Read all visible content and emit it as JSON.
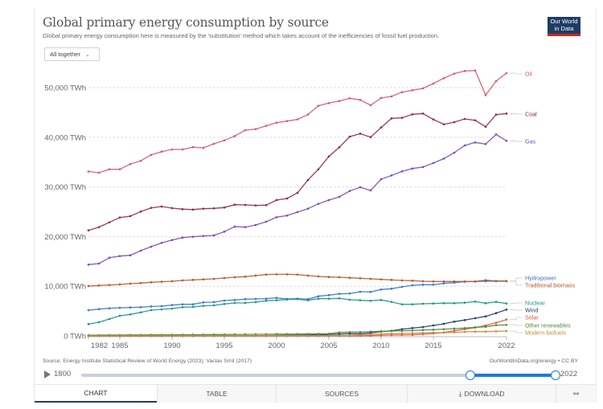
{
  "header": {
    "title": "Global primary energy consumption by source",
    "subtitle": "Global primary energy consumption here is measured by the 'substitution' method which takes account of the inefficiencies of fossil fuel production.",
    "logo_line1": "Our World",
    "logo_line2": "in Data"
  },
  "controls": {
    "dropdown_label": "All together",
    "dropdown_icon": "chevron-down-icon"
  },
  "footer": {
    "source": "Source: Energy Institute Statistical Review of World Energy (2023); Vaclav Smil (2017)",
    "license": "OurWorldInData.org/energy • CC BY"
  },
  "timeline": {
    "play_icon": "play-icon",
    "min_label": "1800",
    "max_label": "2022",
    "range_min": 1800,
    "range_max": 2022,
    "selected_start": 1982,
    "selected_end": 2022
  },
  "tabs": [
    {
      "label": "CHART",
      "active": true
    },
    {
      "label": "TABLE",
      "active": false
    },
    {
      "label": "SOURCES",
      "active": false
    },
    {
      "label": "DOWNLOAD",
      "active": false,
      "icon": "download-icon"
    },
    {
      "label": "",
      "active": false,
      "icon": "share-icon"
    }
  ],
  "chart_data": {
    "type": "line",
    "title": "Global primary energy consumption by source",
    "xlabel": "",
    "ylabel": "",
    "xlim": [
      1982,
      2022
    ],
    "ylim": [
      0,
      55000
    ],
    "x_ticks": [
      1982,
      1985,
      1990,
      1995,
      2000,
      2005,
      2010,
      2015,
      2022
    ],
    "y_ticks": [
      {
        "value": 0,
        "label": "0 TWh"
      },
      {
        "value": 10000,
        "label": "10,000 TWh"
      },
      {
        "value": 20000,
        "label": "20,000 TWh"
      },
      {
        "value": 30000,
        "label": "30,000 TWh"
      },
      {
        "value": 40000,
        "label": "40,000 TWh"
      },
      {
        "value": 50000,
        "label": "50,000 TWh"
      }
    ],
    "grid": "horizontal dashed",
    "legend": "right (inline labels)",
    "x": [
      1982,
      1983,
      1984,
      1985,
      1986,
      1987,
      1988,
      1989,
      1990,
      1991,
      1992,
      1993,
      1994,
      1995,
      1996,
      1997,
      1998,
      1999,
      2000,
      2001,
      2002,
      2003,
      2004,
      2005,
      2006,
      2007,
      2008,
      2009,
      2010,
      2011,
      2012,
      2013,
      2014,
      2015,
      2016,
      2017,
      2018,
      2019,
      2020,
      2021,
      2022
    ],
    "series": [
      {
        "name": "Oil",
        "color": "#d2586a",
        "values": [
          33100,
          32850,
          33550,
          33550,
          34600,
          35250,
          36450,
          37100,
          37540,
          37540,
          38000,
          37860,
          38670,
          39370,
          40240,
          41420,
          41640,
          42290,
          42930,
          43260,
          43600,
          44560,
          46340,
          46880,
          47300,
          47850,
          47520,
          46440,
          47900,
          48220,
          49080,
          49470,
          49840,
          50810,
          51890,
          52810,
          53340,
          53450,
          48490,
          51300,
          52910
        ]
      },
      {
        "name": "Coal",
        "color": "#8c2a3a",
        "values": [
          21250,
          21900,
          22870,
          23840,
          24110,
          25030,
          25780,
          26050,
          25730,
          25510,
          25430,
          25620,
          25680,
          25840,
          26430,
          26380,
          26270,
          26320,
          27350,
          27670,
          28800,
          31390,
          33550,
          36140,
          37970,
          40130,
          40720,
          40020,
          41960,
          43800,
          43910,
          44610,
          44770,
          43580,
          42610,
          43040,
          43690,
          43420,
          42120,
          44550,
          44770
        ]
      },
      {
        "name": "Gas",
        "color": "#7a4ab0",
        "values": [
          14350,
          14560,
          15750,
          16070,
          16230,
          17150,
          17960,
          18720,
          19300,
          19790,
          19960,
          20120,
          20230,
          20980,
          22010,
          21900,
          22330,
          22980,
          23900,
          24220,
          24920,
          25620,
          26590,
          27350,
          27990,
          29180,
          29940,
          29290,
          31550,
          32310,
          33120,
          33700,
          34000,
          34800,
          35700,
          36890,
          38350,
          38950,
          38620,
          40560,
          39270
        ]
      },
      {
        "name": "Hydropower",
        "color": "#3b73c4",
        "values": [
          5180,
          5390,
          5550,
          5660,
          5710,
          5770,
          5930,
          5990,
          6200,
          6360,
          6360,
          6740,
          6800,
          7120,
          7230,
          7390,
          7440,
          7490,
          7650,
          7440,
          7490,
          7390,
          7980,
          8200,
          8470,
          8530,
          8900,
          8850,
          9340,
          9500,
          9870,
          10190,
          10300,
          10300,
          10570,
          10730,
          10900,
          10950,
          11220,
          11060,
          11060
        ]
      },
      {
        "name": "Traditional biomass",
        "color": "#b5562a",
        "values": [
          10030,
          10140,
          10250,
          10360,
          10520,
          10630,
          10790,
          10900,
          11000,
          11170,
          11270,
          11380,
          11490,
          11650,
          11810,
          11920,
          12140,
          12350,
          12400,
          12400,
          12350,
          12140,
          11970,
          11860,
          11810,
          11700,
          11600,
          11490,
          11380,
          11270,
          11170,
          11110,
          11000,
          10950,
          10950,
          10950,
          10950,
          10950,
          11000,
          11000,
          11000
        ]
      },
      {
        "name": "Nuclear",
        "color": "#1a9587",
        "values": [
          2370,
          2750,
          3400,
          4050,
          4320,
          4740,
          5180,
          5340,
          5500,
          5770,
          5830,
          6040,
          6150,
          6420,
          6630,
          6630,
          6800,
          7070,
          7170,
          7330,
          7390,
          7170,
          7490,
          7490,
          7560,
          7280,
          7170,
          7070,
          7230,
          6850,
          6360,
          6360,
          6470,
          6520,
          6580,
          6580,
          6690,
          6900,
          6580,
          6850,
          6520
        ]
      },
      {
        "name": "Wind",
        "color": "#1f3a6e",
        "values": [
          0,
          0,
          0,
          0,
          0,
          0,
          0,
          0,
          10,
          10,
          10,
          15,
          20,
          25,
          30,
          40,
          50,
          60,
          90,
          110,
          150,
          190,
          240,
          290,
          370,
          460,
          440,
          600,
          860,
          1020,
          1350,
          1570,
          1780,
          2100,
          2430,
          2860,
          3180,
          3560,
          3930,
          4580,
          5290
        ]
      },
      {
        "name": "Solar",
        "color": "#e0553d",
        "values": [
          0,
          0,
          0,
          0,
          0,
          0,
          0,
          0,
          0,
          0,
          0,
          0,
          0,
          0,
          0,
          0,
          0,
          0,
          5,
          5,
          5,
          5,
          5,
          10,
          10,
          15,
          30,
          50,
          90,
          160,
          190,
          210,
          320,
          490,
          700,
          1020,
          1350,
          1670,
          2100,
          2640,
          3290
        ]
      },
      {
        "name": "Other renewables",
        "color": "#4f8a3c",
        "values": [
          150,
          160,
          170,
          180,
          190,
          200,
          210,
          220,
          230,
          240,
          250,
          260,
          270,
          280,
          300,
          310,
          320,
          330,
          350,
          360,
          380,
          400,
          420,
          440,
          700,
          760,
          760,
          860,
          920,
          970,
          1020,
          1080,
          1180,
          1240,
          1350,
          1460,
          1570,
          1730,
          1830,
          2160,
          2220
        ]
      },
      {
        "name": "Modern biofuels",
        "color": "#c58a3a",
        "values": [
          10,
          15,
          20,
          25,
          30,
          30,
          30,
          35,
          40,
          40,
          40,
          40,
          40,
          45,
          45,
          50,
          50,
          50,
          50,
          50,
          50,
          60,
          70,
          50,
          50,
          110,
          210,
          280,
          370,
          440,
          490,
          540,
          600,
          650,
          650,
          700,
          810,
          860,
          860,
          920,
          970
        ]
      }
    ]
  }
}
